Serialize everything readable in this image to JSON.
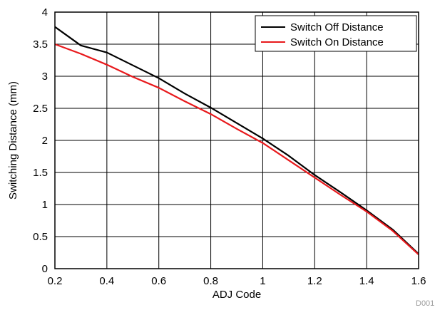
{
  "chart_data": {
    "type": "line",
    "title": "",
    "xlabel": "ADJ Code",
    "ylabel": "Switching Distance (mm)",
    "xlim": [
      0.2,
      1.6
    ],
    "ylim": [
      0,
      4
    ],
    "xticks": [
      0.2,
      0.4,
      0.6,
      0.8,
      1,
      1.2,
      1.4,
      1.6
    ],
    "yticks": [
      0,
      0.5,
      1,
      1.5,
      2,
      2.5,
      3,
      3.5,
      4
    ],
    "xtick_labels": [
      "0.2",
      "0.4",
      "0.6",
      "0.8",
      "1",
      "1.2",
      "1.4",
      "1.6"
    ],
    "ytick_labels": [
      "0",
      "0.5",
      "1",
      "1.5",
      "2",
      "2.5",
      "3",
      "3.5",
      "4"
    ],
    "grid": true,
    "legend_position": "top-right",
    "footnote": "D001",
    "series": [
      {
        "name": "Switch Off Distance",
        "color": "#000000",
        "x": [
          0.2,
          0.3,
          0.4,
          0.5,
          0.6,
          0.7,
          0.8,
          0.9,
          1.0,
          1.1,
          1.2,
          1.3,
          1.4,
          1.5,
          1.6
        ],
        "y": [
          3.77,
          3.48,
          3.37,
          3.17,
          2.97,
          2.73,
          2.51,
          2.27,
          2.03,
          1.76,
          1.46,
          1.19,
          0.91,
          0.61,
          0.23
        ]
      },
      {
        "name": "Switch On Distance",
        "color": "#e8191c",
        "x": [
          0.2,
          0.3,
          0.4,
          0.5,
          0.6,
          0.7,
          0.8,
          0.9,
          1.0,
          1.1,
          1.2,
          1.3,
          1.4,
          1.5,
          1.6
        ],
        "y": [
          3.5,
          3.35,
          3.18,
          2.99,
          2.82,
          2.61,
          2.41,
          2.18,
          1.96,
          1.69,
          1.42,
          1.15,
          0.89,
          0.59,
          0.22
        ]
      }
    ]
  }
}
